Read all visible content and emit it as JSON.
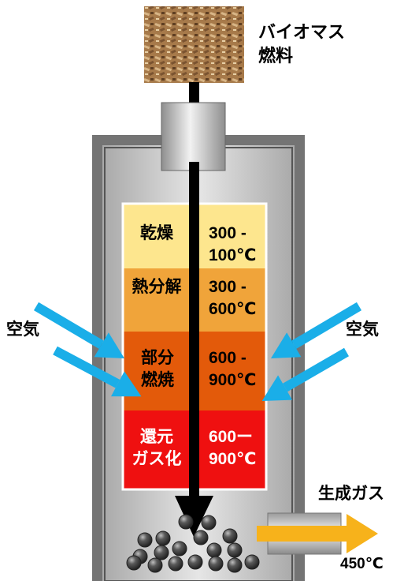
{
  "fuel": {
    "line1": "バイオマス",
    "line2": "燃料"
  },
  "air_left": "空気",
  "air_right": "空気",
  "zones": [
    {
      "name1": "乾燥",
      "name2": "",
      "temp1": "300 -",
      "temp2": "100℃",
      "color": "#fde68e"
    },
    {
      "name1": "熱分解",
      "name2": "",
      "temp1": "300 -",
      "temp2": "600℃",
      "color": "#f0a43a"
    },
    {
      "name1": "部分",
      "name2": "燃焼",
      "temp1": "600 -",
      "temp2": "900℃",
      "color": "#e35a0a"
    },
    {
      "name1": "還元",
      "name2": "ガス化",
      "temp1": "600ー",
      "temp2": "900℃",
      "color": "#ef1010"
    }
  ],
  "output": {
    "label": "生成ガス",
    "temp": "450℃"
  },
  "colors": {
    "air_arrow": "#1aaee8",
    "gas_arrow": "#f7b21b",
    "vessel_outer": "#747474",
    "vessel_inner": "#bdbdbd"
  }
}
